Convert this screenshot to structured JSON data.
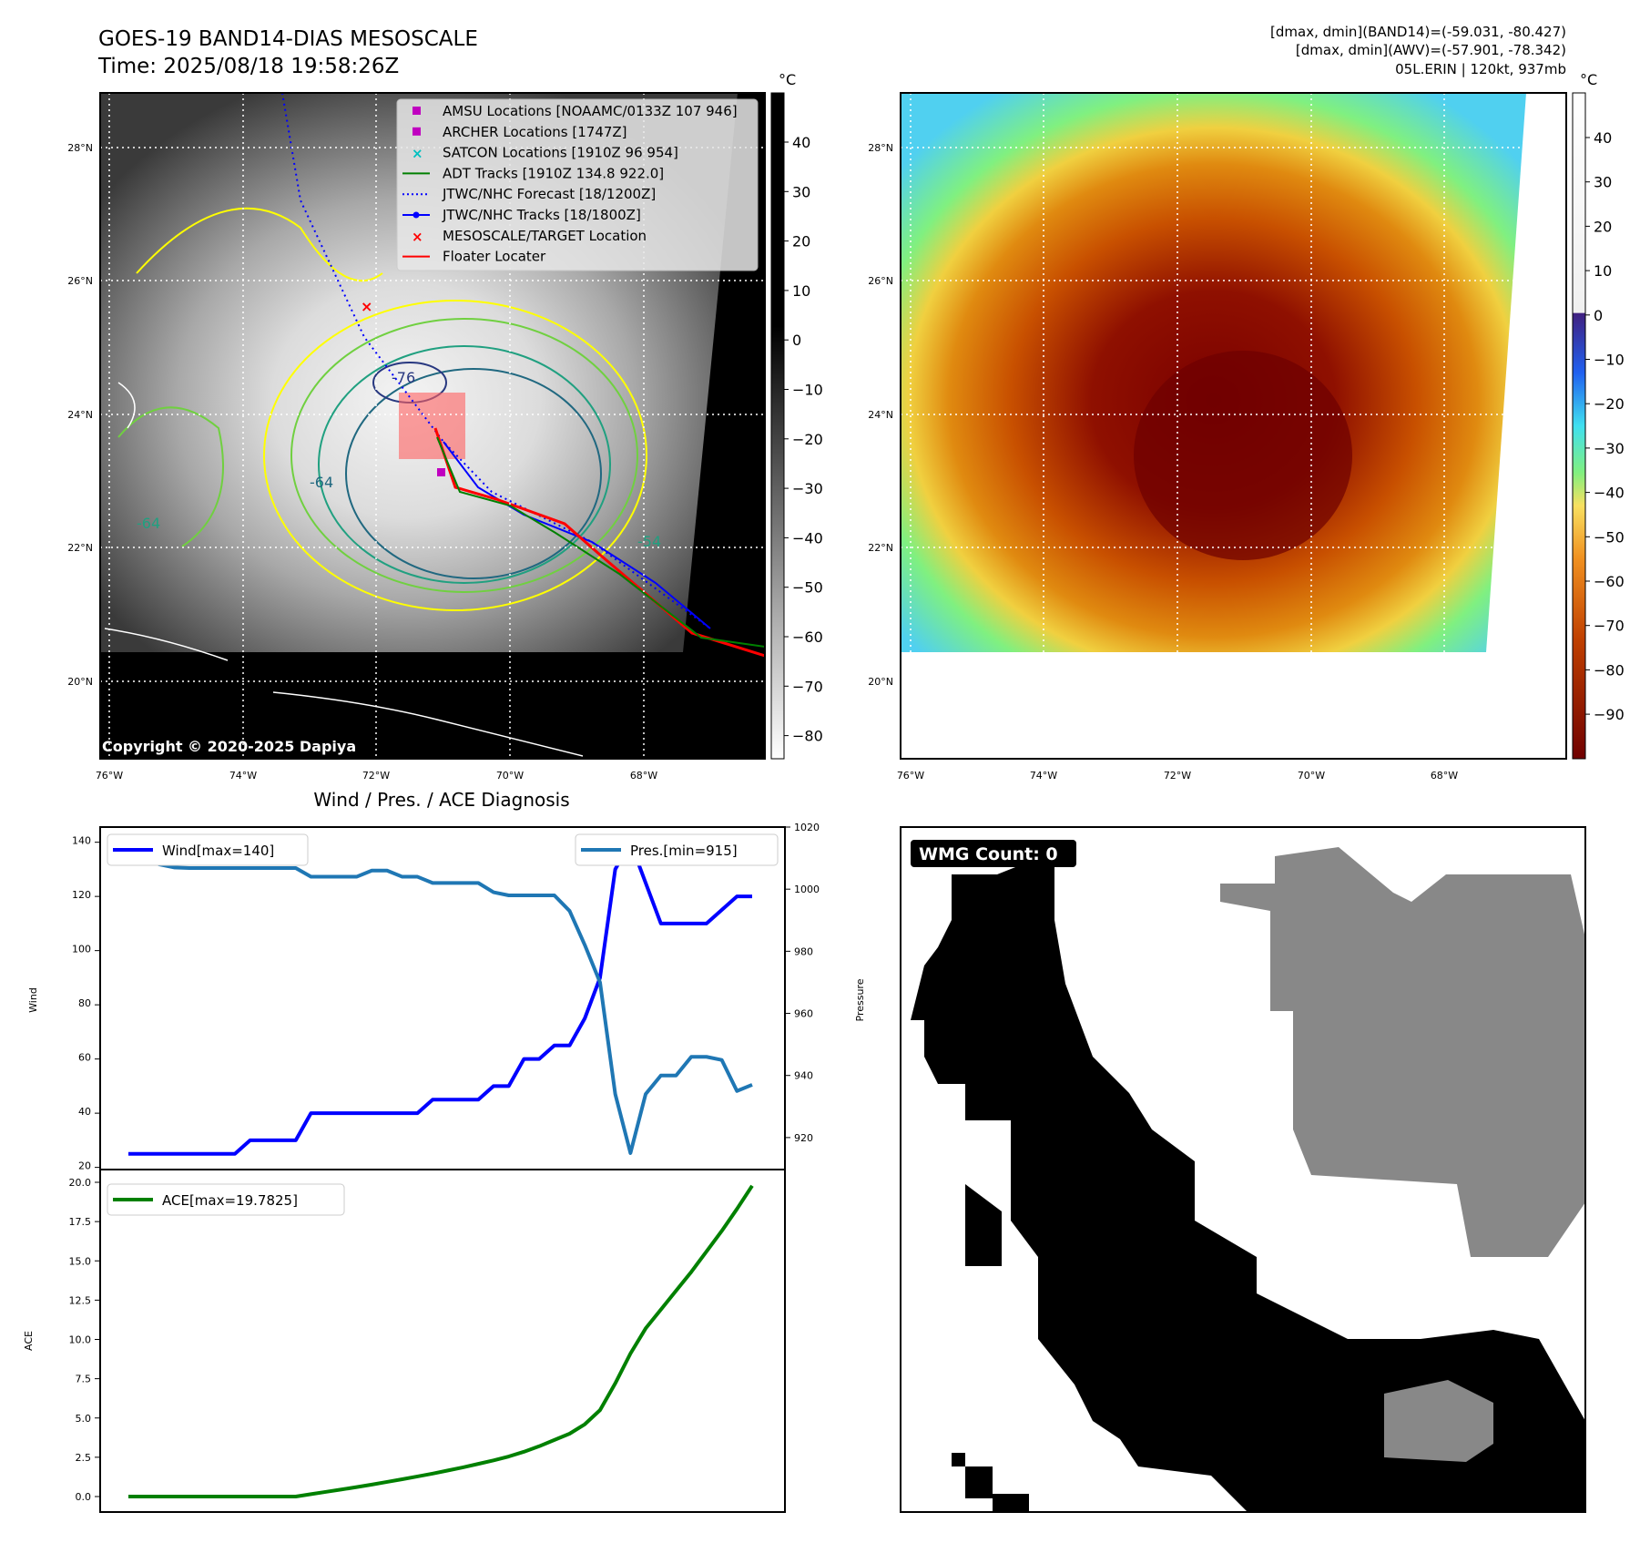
{
  "header": {
    "title_line1": "GOES-19 BAND14-DIAS MESOSCALE",
    "title_line2": "Time: 2025/08/18 19:58:26Z",
    "info_line1": "[dmax, dmin](BAND14)=(-59.031, -80.427)",
    "info_line2": "[dmax, dmin](AWV)=(-57.901, -78.342)",
    "info_line3": "05L.ERIN | 120kt, 937mb"
  },
  "maps": {
    "lat_labels": [
      "28°N",
      "26°N",
      "24°N",
      "22°N",
      "20°N"
    ],
    "lon_labels": [
      "76°W",
      "74°W",
      "72°W",
      "70°W",
      "68°W"
    ],
    "unit": "°C",
    "colorbar1_ticks": [
      "40",
      "30",
      "20",
      "10",
      "0",
      "−10",
      "−20",
      "−30",
      "−40",
      "−50",
      "−60",
      "−70",
      "−80"
    ],
    "colorbar2_ticks": [
      "40",
      "30",
      "20",
      "10",
      "0",
      "−10",
      "−20",
      "−30",
      "−40",
      "−50",
      "−60",
      "−70",
      "−80",
      "−90"
    ],
    "contour_labels": [
      "-76",
      "-64",
      "-54",
      "-64"
    ],
    "copyright": "Copyright © 2020-2025 Dapiya",
    "legend": [
      {
        "label": "AMSU Locations [NOAAMC/0133Z 107 946]",
        "color": "#c000c0",
        "icon": "square-marker"
      },
      {
        "label": "ARCHER Locations [1747Z]",
        "color": "#c000c0",
        "icon": "square-marker"
      },
      {
        "label": "SATCON Locations [1910Z 96 954]",
        "color": "#00c0c0",
        "icon": "x-marker"
      },
      {
        "label": "ADT Tracks [1910Z 134.8 922.0]",
        "color": "#008000",
        "icon": "line"
      },
      {
        "label": "JTWC/NHC Forecast [18/1200Z]",
        "color": "#0000ff",
        "icon": "dotted-line"
      },
      {
        "label": "JTWC/NHC Tracks [18/1800Z]",
        "color": "#0000ff",
        "icon": "line-dot"
      },
      {
        "label": "MESOSCALE/TARGET Location",
        "color": "#ff0000",
        "icon": "x-marker"
      },
      {
        "label": "Floater Locater",
        "color": "#ff0000",
        "icon": "line"
      }
    ]
  },
  "wmg": {
    "label": "WMG Count: 0"
  },
  "chart_data": [
    {
      "type": "line",
      "title": "Wind / Pres. / ACE Diagnosis",
      "ylabel": "Wind",
      "y2label": "Pressure",
      "ylim": [
        19.2,
        145.6
      ],
      "y2lim": [
        909.7,
        1020
      ],
      "yticks": [
        20,
        40,
        60,
        80,
        100,
        120,
        140
      ],
      "y2ticks": [
        920,
        940,
        960,
        980,
        1000,
        1020
      ],
      "series": [
        {
          "name": "Wind[max=140]",
          "color": "#0000ff",
          "axis": "left",
          "values": [
            25,
            25,
            25,
            25,
            25,
            25,
            25,
            25,
            30,
            30,
            30,
            30,
            40,
            40,
            40,
            40,
            40,
            40,
            40,
            40,
            45,
            45,
            45,
            45,
            50,
            50,
            60,
            60,
            65,
            65,
            75,
            90,
            130,
            140,
            125,
            110,
            110,
            110,
            110,
            115,
            120,
            120
          ]
        },
        {
          "name": "Pres.[min=915]",
          "color": "#1f77b4",
          "axis": "right",
          "values": [
            1015,
            1015,
            1008,
            1007,
            1006.8,
            1006.8,
            1006.8,
            1006.8,
            1006.8,
            1006.8,
            1006.8,
            1006.8,
            1004,
            1004,
            1004,
            1004,
            1006,
            1006,
            1004,
            1004,
            1002,
            1002,
            1002,
            1002,
            999,
            998,
            998,
            998,
            998,
            993,
            982,
            970,
            934,
            915,
            934,
            940,
            940,
            946,
            946,
            945,
            935,
            937
          ]
        }
      ]
    },
    {
      "type": "line",
      "ylabel": "ACE",
      "ylim": [
        -1,
        20.2
      ],
      "yticks": [
        "0.0",
        "2.5",
        "5.0",
        "7.5",
        "10.0",
        "12.5",
        "15.0",
        "17.5",
        "20.0"
      ],
      "series": [
        {
          "name": "ACE[max=19.7825]",
          "color": "#008000",
          "values": [
            0,
            0,
            0,
            0,
            0,
            0,
            0,
            0,
            0,
            0,
            0,
            0,
            0.15,
            0.3,
            0.45,
            0.6,
            0.76,
            0.93,
            1.1,
            1.28,
            1.46,
            1.66,
            1.86,
            2.08,
            2.3,
            2.55,
            2.85,
            3.2,
            3.6,
            4.0,
            4.6,
            5.5,
            7.2,
            9.1,
            10.7,
            11.9,
            13.1,
            14.3,
            15.6,
            16.9,
            18.3,
            19.78
          ]
        }
      ]
    }
  ]
}
